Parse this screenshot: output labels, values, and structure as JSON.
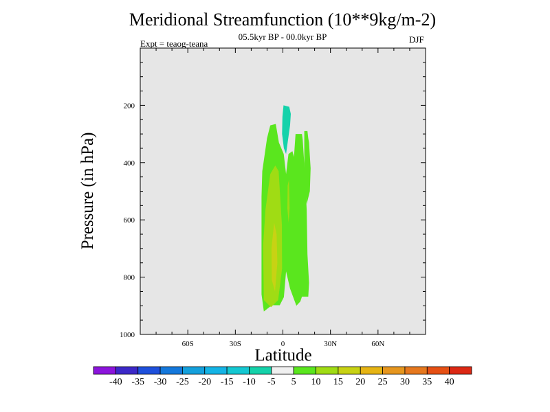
{
  "chart_data": {
    "type": "contour",
    "title": "Meridional Streamfunction (10**9kg/m-2)",
    "subtitle": "05.5kyr BP - 00.0kyr BP",
    "left_string": "Expt = teaog-teana",
    "right_string": "DJF",
    "xlabel": "Latitude",
    "ylabel": "Pressure (in hPa)",
    "xlim": [
      -90,
      90
    ],
    "ylim": [
      0,
      1000
    ],
    "y_inverted": true,
    "background_color": "#e6e6e6",
    "x_ticks": [
      {
        "value": -60,
        "label": "60S"
      },
      {
        "value": -30,
        "label": "30S"
      },
      {
        "value": 0,
        "label": "0"
      },
      {
        "value": 30,
        "label": "30N"
      },
      {
        "value": 60,
        "label": "60N"
      }
    ],
    "y_ticks": [
      {
        "value": 200,
        "label": "200"
      },
      {
        "value": 400,
        "label": "400"
      },
      {
        "value": 600,
        "label": "600"
      },
      {
        "value": 800,
        "label": "800"
      },
      {
        "value": 1000,
        "label": "1000"
      }
    ],
    "levels": [
      -40,
      -35,
      -30,
      -25,
      -20,
      -15,
      -10,
      -5,
      5,
      10,
      15,
      20,
      25,
      30,
      35,
      40
    ],
    "level_labels": [
      "-40",
      "-35",
      "-30",
      "-25",
      "-20",
      "-15",
      "-10",
      "-5",
      "5",
      "10",
      "15",
      "20",
      "25",
      "30",
      "35",
      "40"
    ],
    "colors": [
      "#8c14dc",
      "#3c28c8",
      "#1e50dc",
      "#1478dc",
      "#14a0dc",
      "#14b4e6",
      "#14c8d2",
      "#14d2aa",
      "#f0f0f0",
      "#5ae61e",
      "#a0dc14",
      "#c8d214",
      "#e6b414",
      "#e6961e",
      "#e6781e",
      "#e65014",
      "#dc2814"
    ],
    "regions": [
      {
        "name": "neg-upper-cell",
        "color": "#14d2aa",
        "points": [
          [
            0.4,
            200
          ],
          [
            4,
            205
          ],
          [
            5,
            230
          ],
          [
            4.5,
            270
          ],
          [
            3,
            330
          ],
          [
            2,
            370
          ],
          [
            0.6,
            350
          ],
          [
            -0.5,
            300
          ],
          [
            -0.3,
            240
          ]
        ]
      },
      {
        "name": "pos-main-5",
        "color": "#5ae61e",
        "points": [
          [
            -8,
            270
          ],
          [
            -4.5,
            265
          ],
          [
            -2.5,
            330
          ],
          [
            0.5,
            370
          ],
          [
            2,
            440
          ],
          [
            3.5,
            370
          ],
          [
            6,
            360
          ],
          [
            7,
            380
          ],
          [
            8,
            300
          ],
          [
            12,
            300
          ],
          [
            12.5,
            320
          ],
          [
            14,
            450
          ],
          [
            15,
            565
          ],
          [
            15.5,
            720
          ],
          [
            16.5,
            820
          ],
          [
            16,
            868
          ],
          [
            12,
            868
          ],
          [
            11,
            885
          ],
          [
            8.5,
            900
          ],
          [
            4.5,
            840
          ],
          [
            2,
            780
          ],
          [
            0.6,
            870
          ],
          [
            -2,
            898
          ],
          [
            -7,
            898
          ],
          [
            -12,
            920
          ],
          [
            -13.5,
            860
          ],
          [
            -13.5,
            690
          ],
          [
            -13.5,
            520
          ],
          [
            -13,
            430
          ],
          [
            -10,
            315
          ]
        ]
      },
      {
        "name": "pos-east-5",
        "color": "#5ae61e",
        "points": [
          [
            13.5,
            290
          ],
          [
            15.5,
            290
          ],
          [
            16,
            315
          ],
          [
            16.5,
            330
          ],
          [
            17.5,
            420
          ],
          [
            17,
            500
          ],
          [
            15,
            545
          ],
          [
            13.5,
            470
          ]
        ]
      },
      {
        "name": "pos-main-10",
        "color": "#a0dc14",
        "points": [
          [
            -4.8,
            410
          ],
          [
            -2.7,
            430
          ],
          [
            -0.6,
            620
          ],
          [
            -0.5,
            770
          ],
          [
            -3,
            880
          ],
          [
            -7.5,
            905
          ],
          [
            -12,
            880
          ],
          [
            -12.5,
            690
          ],
          [
            -11,
            565
          ],
          [
            -8,
            440
          ]
        ]
      },
      {
        "name": "pos-sub-10",
        "color": "#a0dc14",
        "points": [
          [
            3,
            480
          ],
          [
            3.8,
            460
          ],
          [
            4.2,
            560
          ],
          [
            3.6,
            610
          ],
          [
            2.8,
            560
          ]
        ]
      },
      {
        "name": "pos-core-15",
        "color": "#c8d214",
        "points": [
          [
            -5.5,
            610
          ],
          [
            -4,
            650
          ],
          [
            -3.5,
            750
          ],
          [
            -5,
            850
          ],
          [
            -7,
            810
          ],
          [
            -7.2,
            700
          ]
        ]
      }
    ]
  }
}
